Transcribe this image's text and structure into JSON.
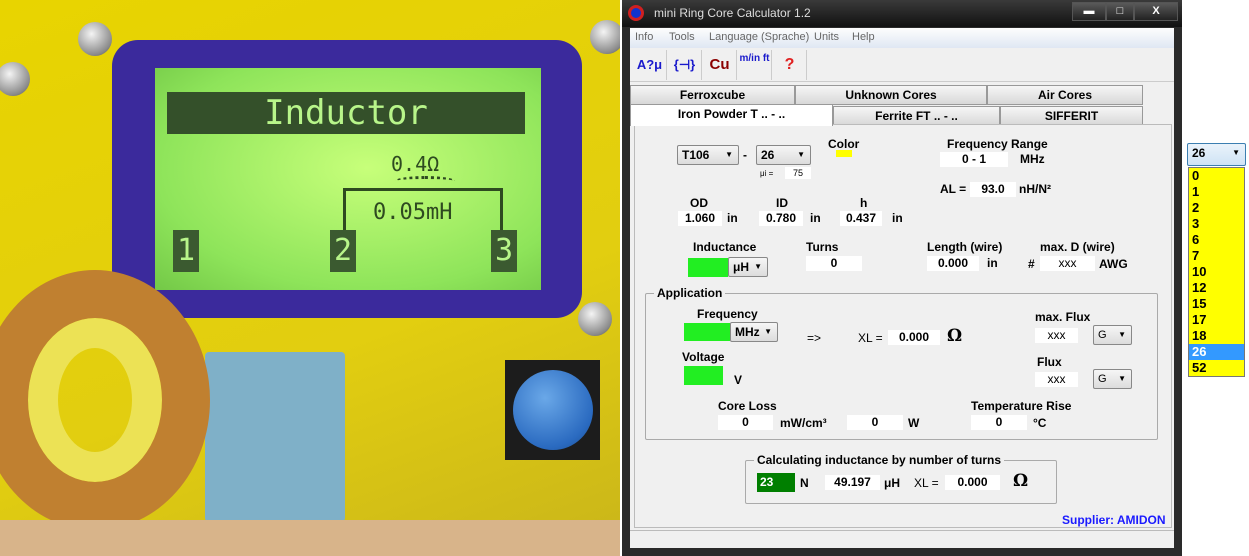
{
  "photo": {
    "lcd_title": "Inductor",
    "resistance": "0.4Ω",
    "inductance": "0.05mH",
    "pins": [
      "1",
      "2",
      "3"
    ]
  },
  "window": {
    "title": "mini Ring Core Calculator 1.2",
    "controls": {
      "minimize": "▬",
      "maximize": "□",
      "close": "X"
    }
  },
  "menu": [
    "Info",
    "Tools",
    "Language (Sprache)",
    "Units",
    "Help"
  ],
  "toolbar": [
    {
      "icon": "al-mu-icon",
      "label": "A?μ"
    },
    {
      "icon": "lc-circuit-icon",
      "label": "{⊣}"
    },
    {
      "icon": "copper-wire-icon",
      "label": "Cu"
    },
    {
      "icon": "units-m-inft-icon",
      "label": "m/in ft"
    },
    {
      "icon": "help-icon",
      "label": "?"
    }
  ],
  "tabs_row1": [
    "Ferroxcube",
    "Unknown Cores",
    "Air Cores"
  ],
  "tabs_row2": [
    "Iron Powder T .. - ..",
    "Ferrite FT .. - ..",
    "SIFFERIT"
  ],
  "active_tab": "Iron Powder T .. - ..",
  "core": {
    "type": "T106",
    "dash": "-",
    "mix": "26",
    "mui_label": "μi =",
    "mui": "75",
    "color_label": "Color",
    "color": "#ffff00",
    "freq_range_label": "Frequency Range",
    "freq_range": "0 - 1",
    "freq_unit": "MHz",
    "al_label": "AL =",
    "al": "93.0",
    "al_unit": "nH/N²",
    "od_label": "OD",
    "od": "1.060",
    "id_label": "ID",
    "id": "0.780",
    "h_label": "h",
    "h": "0.437",
    "dim_unit": "in"
  },
  "inductance": {
    "label": "Inductance",
    "value": "",
    "unit": "μH",
    "turns_label": "Turns",
    "turns": "0",
    "length_label": "Length (wire)",
    "length": "0.000",
    "length_unit": "in",
    "maxd_label": "max. D (wire)",
    "hash": "#",
    "maxd": "xxx",
    "maxd_unit": "AWG"
  },
  "application": {
    "title": "Application",
    "freq_label": "Frequency",
    "freq": "",
    "freq_unit": "MHz",
    "arrow": "=>",
    "xl_label": "XL =",
    "xl": "0.000",
    "ohm": "Ω",
    "maxflux_label": "max. Flux",
    "maxflux": "xxx",
    "maxflux_unit": "G",
    "voltage_label": "Voltage",
    "voltage": "",
    "voltage_unit": "V",
    "flux_label": "Flux",
    "flux": "xxx",
    "flux_unit": "G",
    "coreloss_label": "Core Loss",
    "coreloss": "0",
    "coreloss_unit": "mW/cm³",
    "power": "0",
    "power_unit": "W",
    "temp_label": "Temperature Rise",
    "temp": "0",
    "temp_unit": "°C"
  },
  "calc": {
    "title": "Calculating inductance by number of turns",
    "turns": "23",
    "n_label": "N",
    "inductance": "49.197",
    "unit": "μH",
    "xl_label": "XL =",
    "xl": "0.000",
    "ohm": "Ω"
  },
  "supplier": "Supplier: AMIDON",
  "mix_dropdown": {
    "selected": "26",
    "options": [
      "0",
      "1",
      "2",
      "3",
      "6",
      "7",
      "10",
      "12",
      "15",
      "17",
      "18",
      "26",
      "52"
    ]
  },
  "colors": {
    "green_input": "#22ee22",
    "turns_input": "#007f00",
    "supplier": "#1a1aff",
    "dropdown_bg": "#ffff00",
    "selection": "#3399ff"
  }
}
